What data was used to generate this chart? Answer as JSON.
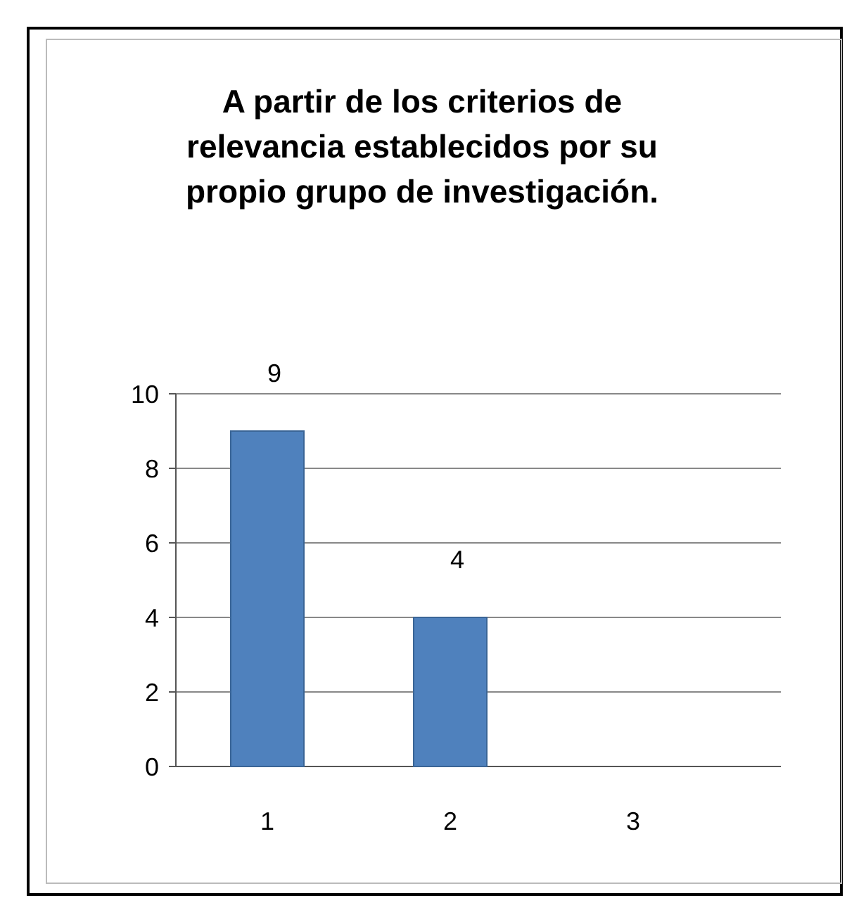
{
  "chart_data": {
    "type": "bar",
    "title": "A partir de los criterios de relevancia establecidos por su propio grupo de investigación.",
    "categories": [
      "1",
      "2",
      "3"
    ],
    "values": [
      9,
      4,
      null
    ],
    "color": "#4f81bd",
    "ylim": [
      0,
      10
    ],
    "yticks": [
      0,
      2,
      4,
      6,
      8,
      10
    ],
    "grid": "y",
    "data_labels": true
  }
}
